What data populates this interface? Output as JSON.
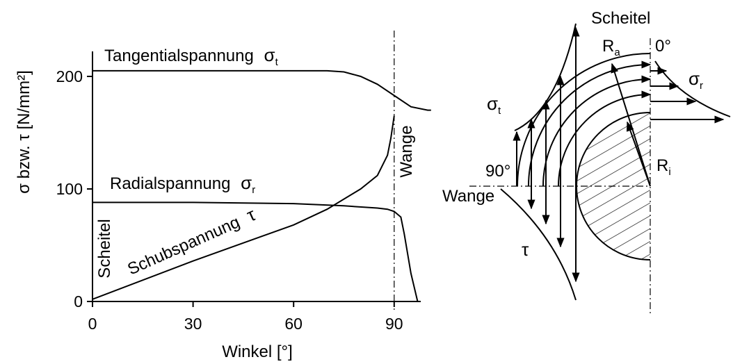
{
  "chart_data": [
    {
      "type": "line",
      "xlabel": "Winkel [°]",
      "ylabel": "σ bzw. τ [N/mm²]",
      "xlim": [
        0,
        100
      ],
      "ylim": [
        0,
        220
      ],
      "x_ticks": [
        "0",
        "30",
        "60",
        "90"
      ],
      "y_ticks": [
        "0",
        "100",
        "200"
      ],
      "grid": false,
      "series": [
        {
          "name": "Tangentialspannung",
          "symbol": "σ",
          "sub": "t",
          "x": [
            0,
            70,
            75,
            80,
            85,
            90,
            95,
            100,
            101
          ],
          "y": [
            205,
            205,
            204,
            200,
            193,
            183,
            173,
            170,
            170
          ]
        },
        {
          "name": "Radialspannung",
          "symbol": "σ",
          "sub": "r",
          "x": [
            0,
            30,
            60,
            75,
            85,
            88,
            90,
            92,
            93,
            95,
            97
          ],
          "y": [
            88,
            88,
            87,
            85,
            83,
            82,
            80,
            75,
            60,
            25,
            0
          ]
        },
        {
          "name": "Schubspannung",
          "symbol": "τ",
          "x": [
            0,
            30,
            60,
            70,
            80,
            85,
            88,
            89,
            90
          ],
          "y": [
            2,
            36,
            68,
            82,
            100,
            112,
            130,
            145,
            165
          ]
        }
      ],
      "annotations": {
        "vline_label": "Wange",
        "start_label": "Scheitel",
        "vline_x": 90
      }
    }
  ],
  "diagram": {
    "top_label": "Scheitel",
    "side_label": "Wange",
    "angle_0": "0°",
    "angle_90": "90°",
    "ra_main": "R",
    "ra_sub": "a",
    "ri_main": "R",
    "ri_sub": "i",
    "sigma_t_main": "σ",
    "sigma_t_sub": "t",
    "sigma_r_main": "σ",
    "sigma_r_sub": "r",
    "tau": "τ"
  }
}
